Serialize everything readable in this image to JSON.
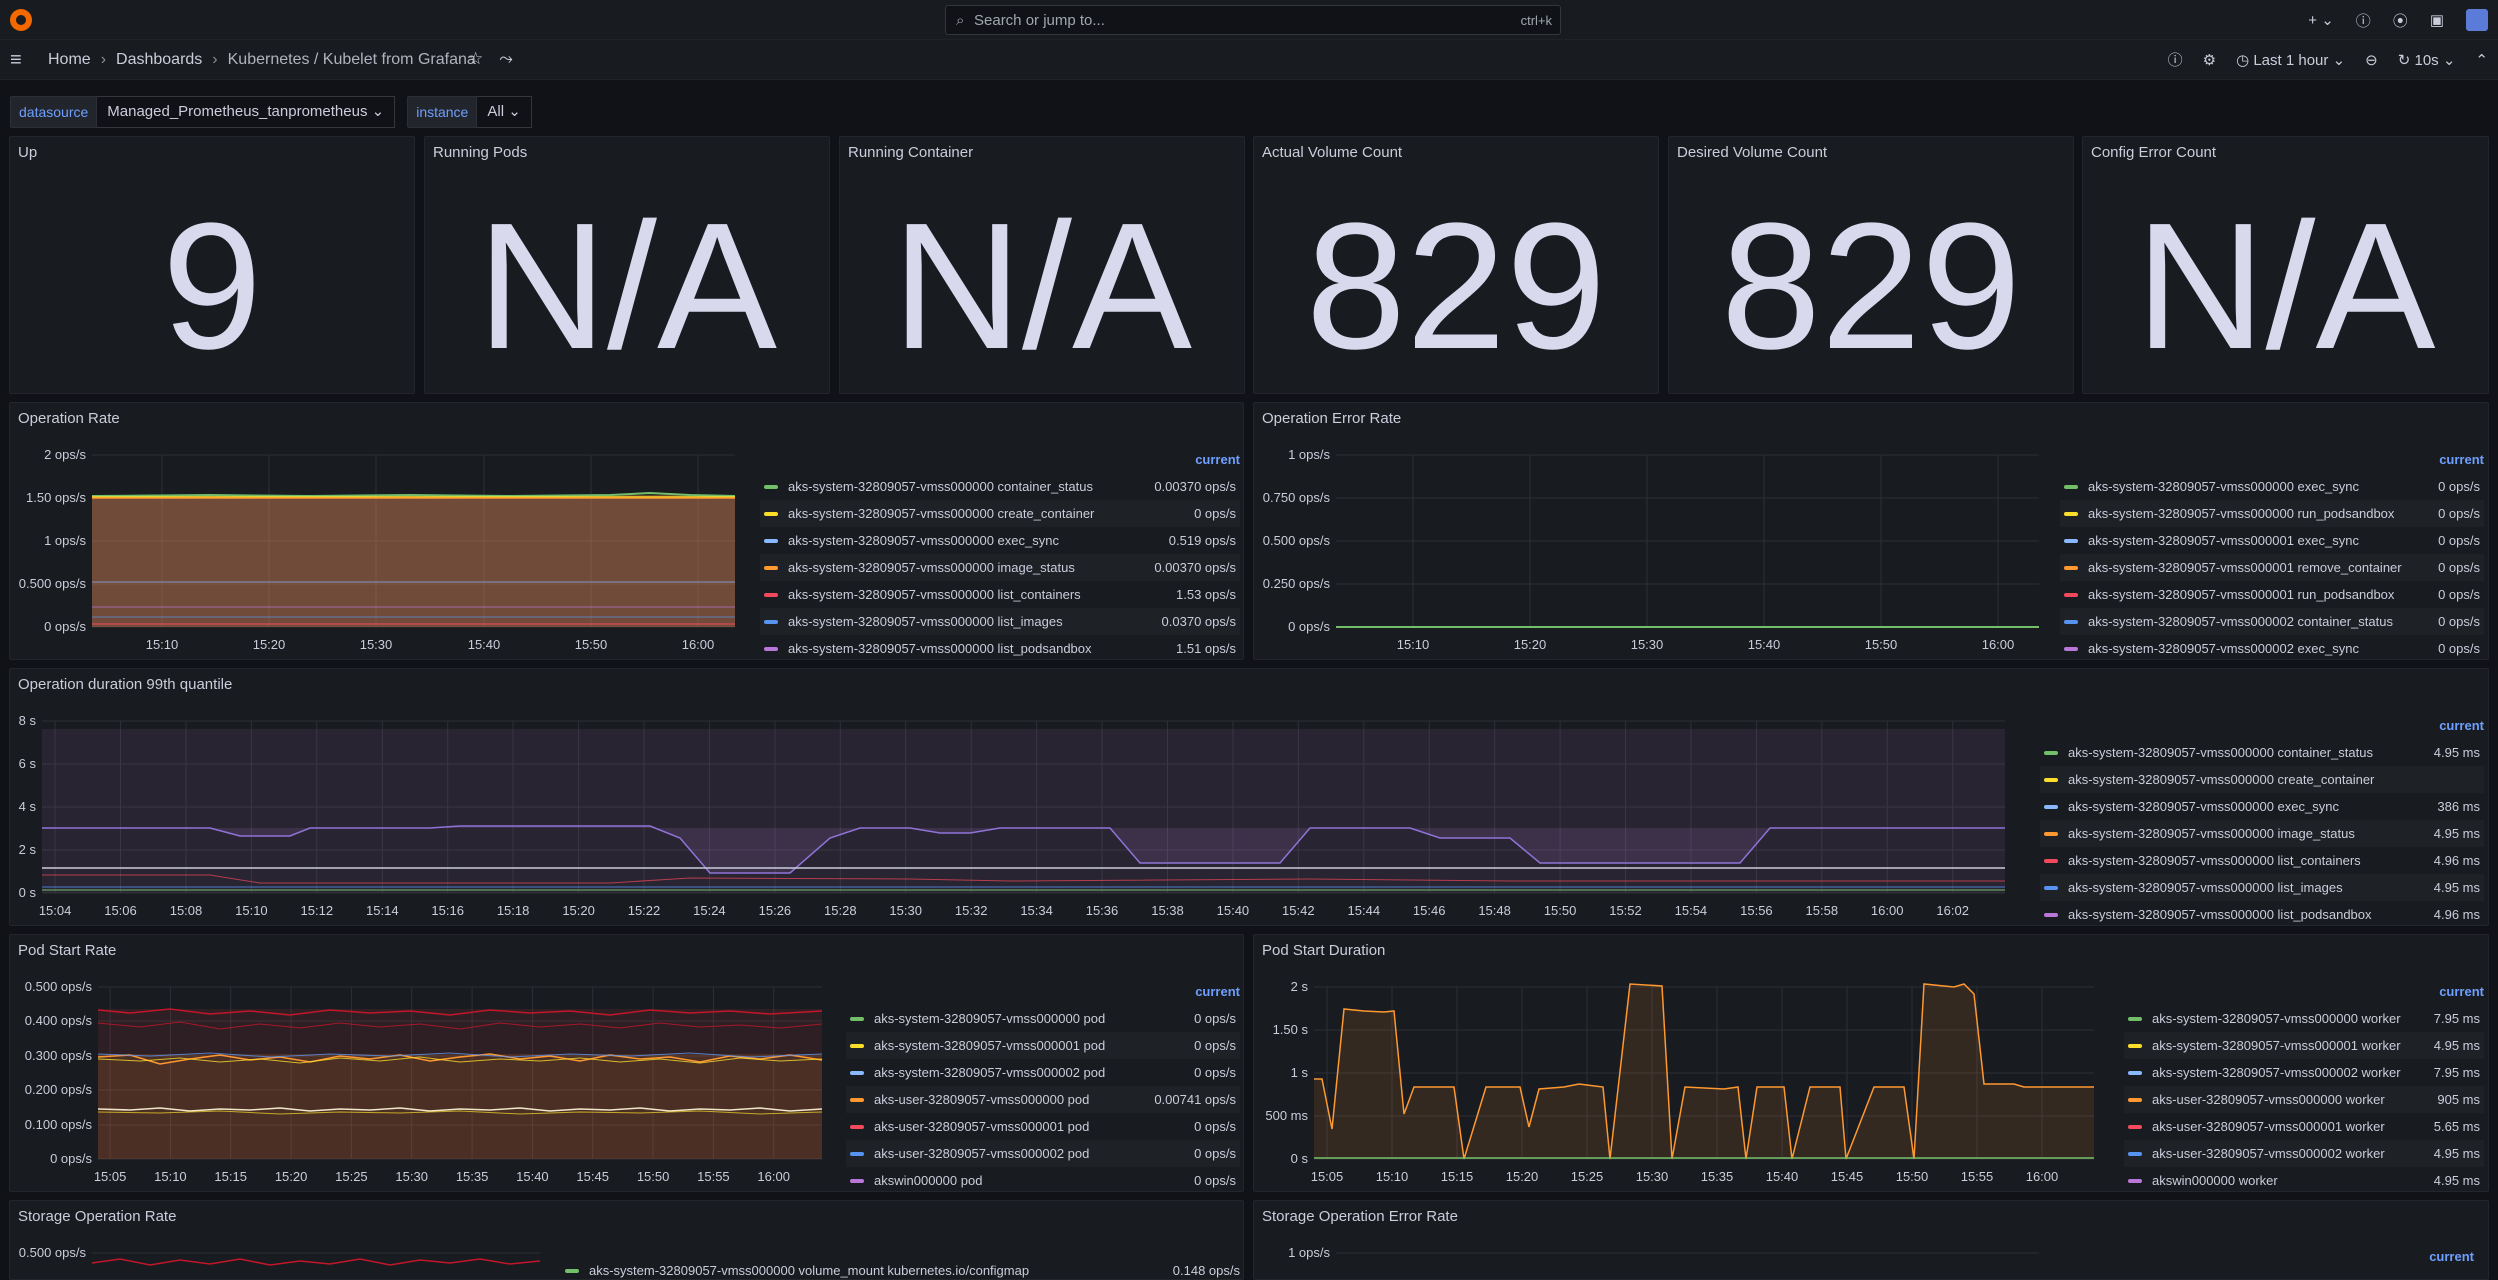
{
  "topbar": {
    "search_placeholder": "Search or jump to...",
    "search_shortcut": "ctrl+k"
  },
  "breadcrumbs": [
    "Home",
    "Dashboards",
    "Kubernetes / Kubelet from Grafana"
  ],
  "time_picker": "Last 1 hour",
  "refresh": "10s",
  "variables": [
    {
      "label": "datasource",
      "value": "Managed_Prometheus_tanprometheus"
    },
    {
      "label": "instance",
      "value": "All"
    }
  ],
  "stats": [
    {
      "title": "Up",
      "value": "9"
    },
    {
      "title": "Running Pods",
      "value": "N/A"
    },
    {
      "title": "Running Container",
      "value": "N/A"
    },
    {
      "title": "Actual Volume Count",
      "value": "829"
    },
    {
      "title": "Desired Volume Count",
      "value": "829"
    },
    {
      "title": "Config Error Count",
      "value": "N/A"
    }
  ],
  "colors": [
    "#73bf69",
    "#fade2a",
    "#8ab8ff",
    "#ff9830",
    "#f2495c",
    "#5794f2",
    "#b877d9"
  ],
  "panels": {
    "op_rate": {
      "title": "Operation Rate",
      "legend_header": "current",
      "yticks": [
        "2 ops/s",
        "1.50 ops/s",
        "1 ops/s",
        "0.500 ops/s",
        "0 ops/s"
      ],
      "xticks": [
        "15:10",
        "15:20",
        "15:30",
        "15:40",
        "15:50",
        "16:00"
      ],
      "legend": [
        {
          "name": "aks-system-32809057-vmss000000 container_status",
          "value": "0.00370 ops/s"
        },
        {
          "name": "aks-system-32809057-vmss000000 create_container",
          "value": "0 ops/s"
        },
        {
          "name": "aks-system-32809057-vmss000000 exec_sync",
          "value": "0.519 ops/s"
        },
        {
          "name": "aks-system-32809057-vmss000000 image_status",
          "value": "0.00370 ops/s"
        },
        {
          "name": "aks-system-32809057-vmss000000 list_containers",
          "value": "1.53 ops/s"
        },
        {
          "name": "aks-system-32809057-vmss000000 list_images",
          "value": "0.0370 ops/s"
        },
        {
          "name": "aks-system-32809057-vmss000000 list_podsandbox",
          "value": "1.51 ops/s"
        }
      ]
    },
    "op_err": {
      "title": "Operation Error Rate",
      "legend_header": "current",
      "yticks": [
        "1 ops/s",
        "0.750 ops/s",
        "0.500 ops/s",
        "0.250 ops/s",
        "0 ops/s"
      ],
      "xticks": [
        "15:10",
        "15:20",
        "15:30",
        "15:40",
        "15:50",
        "16:00"
      ],
      "legend": [
        {
          "name": "aks-system-32809057-vmss000000 exec_sync",
          "value": "0 ops/s"
        },
        {
          "name": "aks-system-32809057-vmss000000 run_podsandbox",
          "value": "0 ops/s"
        },
        {
          "name": "aks-system-32809057-vmss000001 exec_sync",
          "value": "0 ops/s"
        },
        {
          "name": "aks-system-32809057-vmss000001 remove_container",
          "value": "0 ops/s"
        },
        {
          "name": "aks-system-32809057-vmss000001 run_podsandbox",
          "value": "0 ops/s"
        },
        {
          "name": "aks-system-32809057-vmss000002 container_status",
          "value": "0 ops/s"
        },
        {
          "name": "aks-system-32809057-vmss000002 exec_sync",
          "value": "0 ops/s"
        }
      ]
    },
    "op_dur": {
      "title": "Operation duration 99th quantile",
      "legend_header": "current",
      "yticks": [
        "8 s",
        "6 s",
        "4 s",
        "2 s",
        "0 s"
      ],
      "xticks": [
        "15:04",
        "15:06",
        "15:08",
        "15:10",
        "15:12",
        "15:14",
        "15:16",
        "15:18",
        "15:20",
        "15:22",
        "15:24",
        "15:26",
        "15:28",
        "15:30",
        "15:32",
        "15:34",
        "15:36",
        "15:38",
        "15:40",
        "15:42",
        "15:44",
        "15:46",
        "15:48",
        "15:50",
        "15:52",
        "15:54",
        "15:56",
        "15:58",
        "16:00",
        "16:02"
      ],
      "legend": [
        {
          "name": "aks-system-32809057-vmss000000 container_status",
          "value": "4.95 ms"
        },
        {
          "name": "aks-system-32809057-vmss000000 create_container",
          "value": ""
        },
        {
          "name": "aks-system-32809057-vmss000000 exec_sync",
          "value": "386 ms"
        },
        {
          "name": "aks-system-32809057-vmss000000 image_status",
          "value": "4.95 ms"
        },
        {
          "name": "aks-system-32809057-vmss000000 list_containers",
          "value": "4.96 ms"
        },
        {
          "name": "aks-system-32809057-vmss000000 list_images",
          "value": "4.95 ms"
        },
        {
          "name": "aks-system-32809057-vmss000000 list_podsandbox",
          "value": "4.96 ms"
        }
      ]
    },
    "pod_rate": {
      "title": "Pod Start Rate",
      "legend_header": "current",
      "yticks": [
        "0.500 ops/s",
        "0.400 ops/s",
        "0.300 ops/s",
        "0.200 ops/s",
        "0.100 ops/s",
        "0 ops/s"
      ],
      "xticks": [
        "15:05",
        "15:10",
        "15:15",
        "15:20",
        "15:25",
        "15:30",
        "15:35",
        "15:40",
        "15:45",
        "15:50",
        "15:55",
        "16:00"
      ],
      "legend": [
        {
          "name": "aks-system-32809057-vmss000000 pod",
          "value": "0 ops/s"
        },
        {
          "name": "aks-system-32809057-vmss000001 pod",
          "value": "0 ops/s"
        },
        {
          "name": "aks-system-32809057-vmss000002 pod",
          "value": "0 ops/s"
        },
        {
          "name": "aks-user-32809057-vmss000000 pod",
          "value": "0.00741 ops/s"
        },
        {
          "name": "aks-user-32809057-vmss000001 pod",
          "value": "0 ops/s"
        },
        {
          "name": "aks-user-32809057-vmss000002 pod",
          "value": "0 ops/s"
        },
        {
          "name": "akswin000000 pod",
          "value": "0 ops/s"
        }
      ]
    },
    "pod_dur": {
      "title": "Pod Start Duration",
      "legend_header": "current",
      "yticks": [
        "2 s",
        "1.50 s",
        "1 s",
        "500 ms",
        "0 s"
      ],
      "xticks": [
        "15:05",
        "15:10",
        "15:15",
        "15:20",
        "15:25",
        "15:30",
        "15:35",
        "15:40",
        "15:45",
        "15:50",
        "15:55",
        "16:00"
      ],
      "legend": [
        {
          "name": "aks-system-32809057-vmss000000 worker",
          "value": "7.95 ms"
        },
        {
          "name": "aks-system-32809057-vmss000001 worker",
          "value": "4.95 ms"
        },
        {
          "name": "aks-system-32809057-vmss000002 worker",
          "value": "7.95 ms"
        },
        {
          "name": "aks-user-32809057-vmss000000 worker",
          "value": "905 ms"
        },
        {
          "name": "aks-user-32809057-vmss000001 worker",
          "value": "5.65 ms"
        },
        {
          "name": "aks-user-32809057-vmss000002 worker",
          "value": "4.95 ms"
        },
        {
          "name": "akswin000000 worker",
          "value": "4.95 ms"
        }
      ]
    },
    "stor_rate": {
      "title": "Storage Operation Rate",
      "ytick": "0.500 ops/s",
      "legend_first": {
        "name": "aks-system-32809057-vmss000000 volume_mount kubernetes.io/configmap",
        "value": "0.148 ops/s"
      }
    },
    "stor_err": {
      "title": "Storage Operation Error Rate",
      "ytick": "1 ops/s",
      "legend_header": "current"
    }
  }
}
